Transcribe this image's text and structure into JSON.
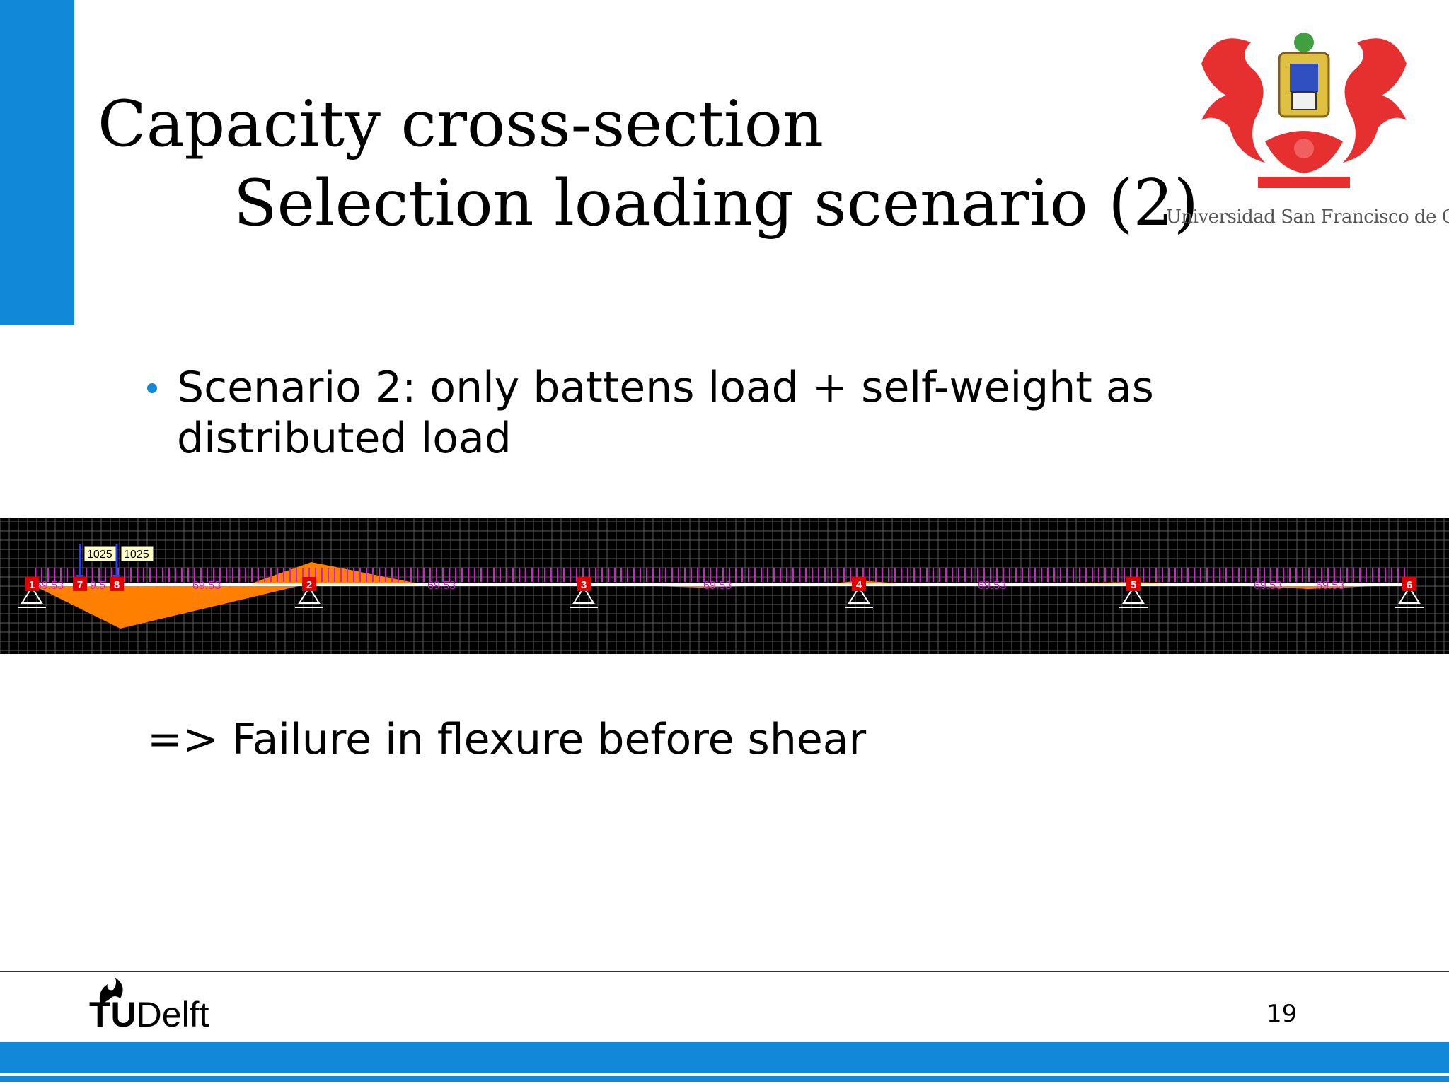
{
  "slide": {
    "title_line1": "Capacity cross-section",
    "title_line2": "Selection loading scenario (2)",
    "logo_caption": "Universidad San Francisco de Quito",
    "bullet_text": "Scenario 2: only battens load + self-weight as distributed load",
    "conclusion": "=> Failure in flexure before shear",
    "footer_logo": {
      "tu": "TU",
      "delft": "Delft"
    },
    "page_number": "19",
    "accent_color": "#1288d8"
  },
  "diagram": {
    "nodes": [
      "1",
      "7",
      "8",
      "2",
      "3",
      "4",
      "5",
      "6"
    ],
    "point_loads": [
      "1025",
      "1025"
    ],
    "distributed_load_labels": [
      "69.53",
      "9.5",
      "69.53",
      "69.53",
      "69.53",
      "69.53",
      "69.53",
      "69.53"
    ],
    "colors": {
      "background": "#000000",
      "grid": "#5a5a5a",
      "moment": "#ff8000",
      "load": "#d020d0",
      "node": "#e00000",
      "point_load": "#2040ff"
    }
  }
}
